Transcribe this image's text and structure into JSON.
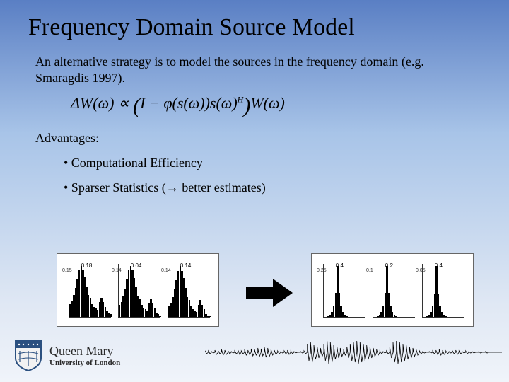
{
  "title": "Frequency Domain Source Model",
  "intro": "An alternative strategy is to model the sources in the frequency domain (e.g. Smaragdis 1997).",
  "equation": {
    "lhs_dW": "ΔW",
    "omega1": "(ω)",
    "prop": " ∝ ",
    "I": "I",
    "minus": " − ",
    "phi": "φ",
    "s1": "(s(ω))",
    "s2": "s(ω)",
    "sup": "H",
    "W": "W",
    "omega2": "(ω)"
  },
  "advantages_label": "Advantages:",
  "bullets": {
    "b1": "• Computational Efficiency",
    "b2": "• Sparser Statistics (→ better estimates)"
  },
  "left_chart": {
    "title": "",
    "panels": [
      {
        "peak_label": "0.18",
        "ytick": "0.15",
        "spikes": [
          18,
          22,
          30,
          40,
          52,
          64,
          70,
          64,
          55,
          42,
          30,
          26,
          18,
          14,
          12,
          10,
          20,
          26,
          20,
          14,
          8,
          6,
          4
        ]
      },
      {
        "peak_label": "0.04",
        "ytick": "0.14",
        "spikes": [
          16,
          20,
          28,
          38,
          50,
          62,
          68,
          62,
          52,
          40,
          28,
          24,
          16,
          12,
          10,
          8,
          18,
          24,
          18,
          12,
          6,
          4,
          2
        ]
      },
      {
        "peak_label": "0.14",
        "ytick": "0.14",
        "spikes": [
          14,
          18,
          26,
          36,
          48,
          60,
          66,
          60,
          50,
          38,
          26,
          22,
          14,
          10,
          8,
          6,
          16,
          22,
          16,
          10,
          4,
          2,
          1
        ]
      }
    ],
    "bar_color": "#000000",
    "background": "#ffffff"
  },
  "right_chart": {
    "title": "",
    "panels": [
      {
        "peak_label": "0.4",
        "ytick": "0.25",
        "spikes": [
          0,
          0,
          2,
          4,
          8,
          18,
          40,
          85,
          40,
          18,
          8,
          4,
          2,
          0,
          0,
          0,
          0,
          0,
          0,
          0,
          0,
          0,
          0
        ]
      },
      {
        "peak_label": "0.2",
        "ytick": "0.1",
        "spikes": [
          0,
          0,
          2,
          4,
          8,
          18,
          40,
          85,
          40,
          18,
          8,
          4,
          2,
          0,
          0,
          0,
          0,
          0,
          0,
          0,
          0,
          0,
          0
        ]
      },
      {
        "peak_label": "0.4",
        "ytick": "0.05",
        "spikes": [
          0,
          0,
          2,
          4,
          8,
          18,
          38,
          82,
          38,
          18,
          8,
          4,
          2,
          0,
          0,
          0,
          0,
          0,
          0,
          0,
          0,
          0,
          0
        ]
      }
    ],
    "bar_color": "#000000",
    "background": "#ffffff"
  },
  "waveform": {
    "amplitudes": [
      2,
      2,
      1,
      3,
      2,
      4,
      3,
      2,
      1,
      2,
      3,
      2,
      4,
      3,
      5,
      4,
      6,
      5,
      7,
      6,
      4,
      3,
      2,
      1,
      2,
      3,
      2,
      1,
      0,
      1,
      2,
      12,
      14,
      10,
      8,
      6,
      12,
      16,
      14,
      10,
      8,
      6,
      4,
      8,
      12,
      14,
      16,
      14,
      12,
      10,
      8,
      6,
      4,
      2,
      1,
      2,
      8,
      14,
      16,
      14,
      12,
      10,
      8,
      6,
      4,
      2,
      1,
      0,
      1,
      2,
      3,
      4,
      3,
      2,
      1,
      2,
      3,
      2,
      1,
      2,
      1,
      1,
      0,
      1,
      0,
      1,
      0,
      0,
      0,
      0
    ],
    "stroke": "#000000"
  },
  "logo": {
    "shield_bg": "#f2f2f2",
    "shield_dark": "#2b5080",
    "text1": "Queen Mary",
    "text2": "University of London"
  }
}
